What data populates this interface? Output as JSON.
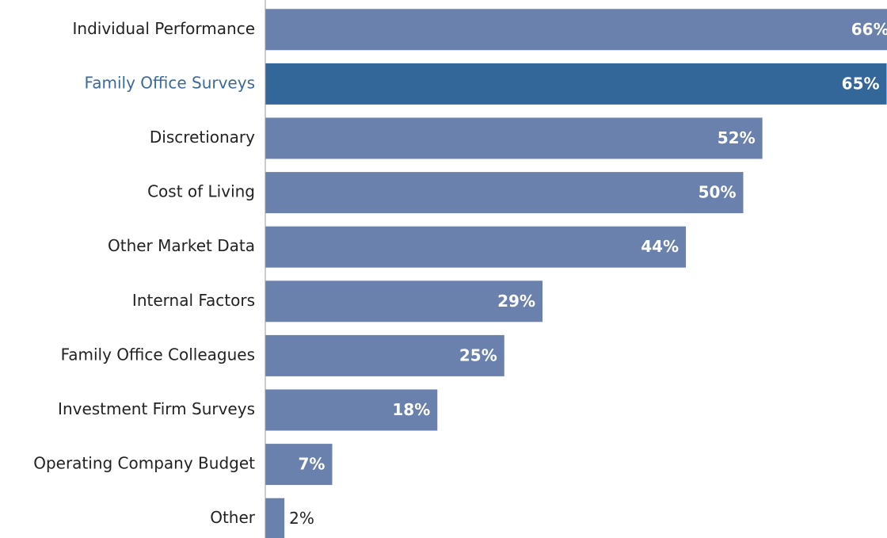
{
  "chart_data": {
    "type": "barh",
    "categories": [
      "Individual Performance",
      "Family Office Surveys",
      "Discretionary",
      "Cost of Living",
      "Other Market Data",
      "Internal Factors",
      "Family Office Colleagues",
      "Investment Firm Surveys",
      "Operating Company Budget",
      "Other"
    ],
    "values": [
      66,
      65,
      52,
      50,
      44,
      29,
      25,
      18,
      7,
      2
    ],
    "value_labels": [
      "66%",
      "65%",
      "52%",
      "50%",
      "44%",
      "29%",
      "25%",
      "18%",
      "7%",
      "2%"
    ],
    "colors": [
      "#6a80ad",
      "#336699",
      "#6a80ad",
      "#6a80ad",
      "#6a80ad",
      "#6a80ad",
      "#6a80ad",
      "#6a80ad",
      "#6a80ad",
      "#6a80ad"
    ],
    "label_colors": [
      "#222222",
      "#3a6a9a",
      "#222222",
      "#222222",
      "#222222",
      "#222222",
      "#222222",
      "#222222",
      "#222222",
      "#222222"
    ]
  }
}
